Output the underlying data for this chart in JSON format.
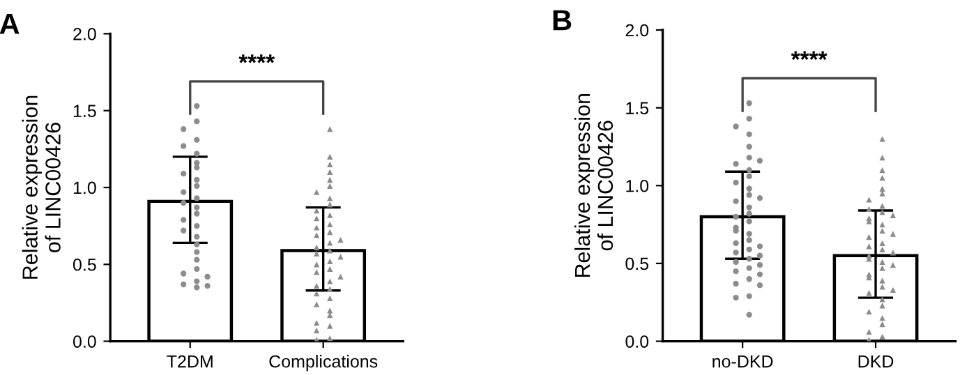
{
  "chart_data": [
    {
      "type": "bar",
      "title": "A",
      "ylabel": "Relative expression\nof LINC00426",
      "categories": [
        "T2DM",
        "Complications"
      ],
      "ylim": [
        0,
        2
      ],
      "yticks": [
        {
          "value": 0,
          "label": "0.0"
        },
        {
          "value": 0.5,
          "label": "0.5"
        },
        {
          "value": 1,
          "label": "1.0"
        },
        {
          "value": 1.5,
          "label": "1.5"
        },
        {
          "value": 2,
          "label": "2.0"
        }
      ],
      "annotations": [
        "****"
      ],
      "series": [
        {
          "color": "#ffffff",
          "values": [
            0.91,
            0.59
          ],
          "errors": [
            [
              0.64,
              1.2
            ],
            [
              0.33,
              0.87
            ]
          ]
        },
        {
          "type": "scatter",
          "color": "#8c8c8c",
          "marker": "circle",
          "x": [
            "T2DM",
            "T2DM",
            "T2DM",
            "T2DM",
            "T2DM",
            "T2DM",
            "T2DM",
            "T2DM",
            "T2DM",
            "T2DM",
            "T2DM",
            "T2DM",
            "T2DM",
            "T2DM",
            "T2DM",
            "T2DM",
            "T2DM",
            "T2DM",
            "T2DM",
            "T2DM",
            "T2DM",
            "T2DM",
            "T2DM",
            "T2DM",
            "T2DM",
            "T2DM",
            "T2DM",
            "T2DM",
            "T2DM",
            "T2DM"
          ],
          "values": [
            1.53,
            1.43,
            1.38,
            1.31,
            1.27,
            1.22,
            1.16,
            1.13,
            1.09,
            1.05,
            1.01,
            0.97,
            0.93,
            0.9,
            0.87,
            0.83,
            0.79,
            0.75,
            0.72,
            0.68,
            0.63,
            0.58,
            0.53,
            0.47,
            0.44,
            0.42,
            0.39,
            0.37,
            0.36,
            0.35
          ]
        },
        {
          "type": "scatter",
          "color": "#8c8c8c",
          "marker": "triangle",
          "x": [
            "Complications",
            "Complications",
            "Complications",
            "Complications",
            "Complications",
            "Complications",
            "Complications",
            "Complications",
            "Complications",
            "Complications",
            "Complications",
            "Complications",
            "Complications",
            "Complications",
            "Complications",
            "Complications",
            "Complications",
            "Complications",
            "Complications",
            "Complications",
            "Complications",
            "Complications",
            "Complications",
            "Complications",
            "Complications",
            "Complications",
            "Complications",
            "Complications",
            "Complications",
            "Complications",
            "Complications",
            "Complications",
            "Complications",
            "Complications",
            "Complications",
            "Complications",
            "Complications",
            "Complications",
            "Complications",
            "Complications"
          ],
          "values": [
            1.38,
            1.2,
            1.15,
            1.1,
            1.05,
            1.01,
            0.97,
            0.93,
            0.89,
            0.85,
            0.82,
            0.8,
            0.76,
            0.74,
            0.71,
            0.69,
            0.66,
            0.64,
            0.61,
            0.59,
            0.57,
            0.55,
            0.52,
            0.5,
            0.47,
            0.45,
            0.42,
            0.39,
            0.36,
            0.34,
            0.31,
            0.28,
            0.24,
            0.2,
            0.17,
            0.12,
            0.1,
            0.07,
            0.02,
            0.01
          ]
        }
      ]
    },
    {
      "type": "bar",
      "title": "B",
      "ylabel": "Relative expression\nof LINC00426",
      "categories": [
        "no-DKD",
        "DKD"
      ],
      "ylim": [
        0,
        2
      ],
      "yticks": [
        {
          "value": 0,
          "label": "0.0"
        },
        {
          "value": 0.5,
          "label": "0.5"
        },
        {
          "value": 1,
          "label": "1.0"
        },
        {
          "value": 1.5,
          "label": "1.5"
        },
        {
          "value": 2,
          "label": "2.0"
        }
      ],
      "annotations": [
        "****"
      ],
      "series": [
        {
          "color": "#ffffff",
          "values": [
            0.8,
            0.55
          ],
          "errors": [
            [
              0.53,
              1.09
            ],
            [
              0.28,
              0.84
            ]
          ]
        },
        {
          "type": "scatter",
          "color": "#8c8c8c",
          "marker": "circle",
          "x": [
            "no-DKD",
            "no-DKD",
            "no-DKD",
            "no-DKD",
            "no-DKD",
            "no-DKD",
            "no-DKD",
            "no-DKD",
            "no-DKD",
            "no-DKD",
            "no-DKD",
            "no-DKD",
            "no-DKD",
            "no-DKD",
            "no-DKD",
            "no-DKD",
            "no-DKD",
            "no-DKD",
            "no-DKD",
            "no-DKD",
            "no-DKD",
            "no-DKD",
            "no-DKD",
            "no-DKD",
            "no-DKD",
            "no-DKD",
            "no-DKD",
            "no-DKD",
            "no-DKD",
            "no-DKD",
            "no-DKD",
            "no-DKD",
            "no-DKD",
            "no-DKD",
            "no-DKD",
            "no-DKD",
            "no-DKD",
            "no-DKD",
            "no-DKD",
            "no-DKD"
          ],
          "values": [
            1.53,
            1.43,
            1.38,
            1.33,
            1.25,
            1.18,
            1.14,
            1.1,
            1.06,
            1.02,
            0.98,
            0.94,
            0.9,
            0.86,
            0.82,
            0.8,
            0.77,
            0.73,
            0.69,
            0.65,
            0.63,
            0.61,
            0.59,
            0.57,
            0.55,
            0.53,
            0.51,
            0.49,
            0.47,
            0.45,
            0.43,
            0.4,
            0.37,
            0.36,
            0.29,
            0.28,
            0.17,
            1.16,
            0.92,
            0.71
          ]
        },
        {
          "type": "scatter",
          "color": "#8c8c8c",
          "marker": "triangle",
          "x": [
            "DKD",
            "DKD",
            "DKD",
            "DKD",
            "DKD",
            "DKD",
            "DKD",
            "DKD",
            "DKD",
            "DKD",
            "DKD",
            "DKD",
            "DKD",
            "DKD",
            "DKD",
            "DKD",
            "DKD",
            "DKD",
            "DKD",
            "DKD",
            "DKD",
            "DKD",
            "DKD",
            "DKD",
            "DKD",
            "DKD",
            "DKD",
            "DKD",
            "DKD",
            "DKD",
            "DKD",
            "DKD",
            "DKD",
            "DKD",
            "DKD",
            "DKD",
            "DKD",
            "DKD",
            "DKD",
            "DKD"
          ],
          "values": [
            1.3,
            1.18,
            1.1,
            1.05,
            0.98,
            0.95,
            0.91,
            0.87,
            0.83,
            0.79,
            0.75,
            0.71,
            0.67,
            0.63,
            0.59,
            0.55,
            0.51,
            0.47,
            0.43,
            0.39,
            0.35,
            0.31,
            0.27,
            0.23,
            0.19,
            0.15,
            0.11,
            0.06,
            0.03,
            0.01,
            0.85,
            0.81,
            0.77,
            0.69,
            0.61,
            0.57,
            0.53,
            0.49,
            0.41,
            0.33
          ]
        }
      ]
    }
  ]
}
